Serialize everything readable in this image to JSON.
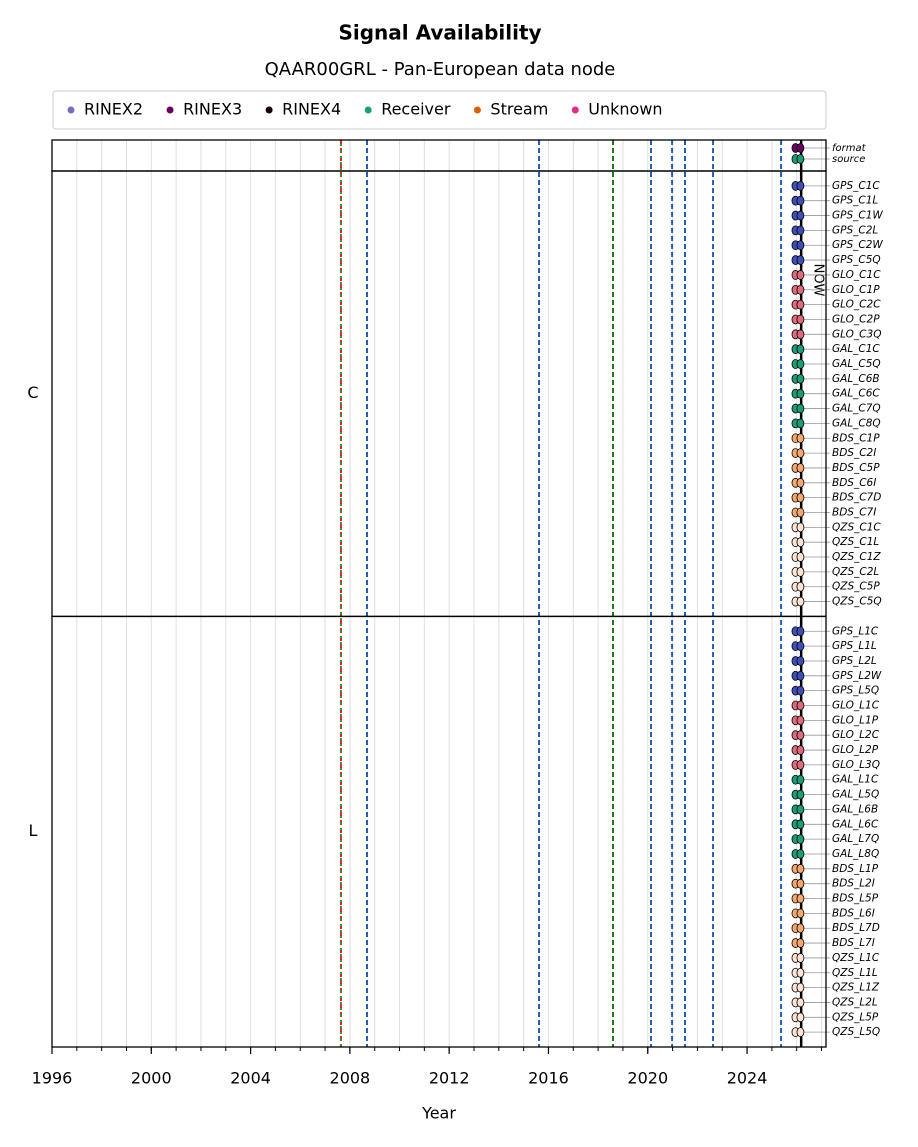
{
  "chart_data": {
    "type": "availability",
    "title": "Signal Availability",
    "subtitle": "QAAR00GRL - Pan-European data node",
    "x_label": "Year",
    "xlim": [
      1996,
      2027.18
    ],
    "xticks": [
      1996,
      2000,
      2004,
      2008,
      2012,
      2016,
      2020,
      2024
    ],
    "grid": true,
    "legend": [
      {
        "name": "RINEX2",
        "color": "#7570b3"
      },
      {
        "name": "RINEX3",
        "color": "#6a0060"
      },
      {
        "name": "RINEX4",
        "color": "#1a0010"
      },
      {
        "name": "Receiver",
        "color": "#1b9e77"
      },
      {
        "name": "Stream",
        "color": "#d95f02"
      },
      {
        "name": "Unknown",
        "color": "#e7298a"
      }
    ],
    "now": 2026.18,
    "now_label": "NOW",
    "events": [
      {
        "x": 2007.64,
        "color": "#d62728"
      },
      {
        "x": 2007.64,
        "color": "#2ca02c"
      },
      {
        "x": 2008.69,
        "color": "#1f5fbf"
      },
      {
        "x": 2015.62,
        "color": "#1f5fbf"
      },
      {
        "x": 2018.6,
        "color": "#1a7a1a"
      },
      {
        "x": 2020.13,
        "color": "#1f5fbf"
      },
      {
        "x": 2020.98,
        "color": "#1f5fbf"
      },
      {
        "x": 2021.5,
        "color": "#1f5fbf"
      },
      {
        "x": 2022.63,
        "color": "#1f5fbf"
      },
      {
        "x": 2025.37,
        "color": "#1f5fbf"
      }
    ],
    "meta_rows": [
      {
        "name": "format",
        "color": "#6a0060",
        "x": [
          2025.95,
          2026.15
        ]
      },
      {
        "name": "source",
        "color": "#1b9e77",
        "x": [
          2025.95,
          2026.15
        ]
      }
    ],
    "groups": [
      {
        "name": "C",
        "rows": [
          {
            "name": "GPS_C1C",
            "color": "#3f4fb8",
            "x": [
              2025.95,
              2026.15
            ]
          },
          {
            "name": "GPS_C1L",
            "color": "#3f4fb8",
            "x": [
              2025.95,
              2026.15
            ]
          },
          {
            "name": "GPS_C1W",
            "color": "#3f4fb8",
            "x": [
              2025.95,
              2026.15
            ]
          },
          {
            "name": "GPS_C2L",
            "color": "#3f4fb8",
            "x": [
              2025.95,
              2026.15
            ]
          },
          {
            "name": "GPS_C2W",
            "color": "#3f4fb8",
            "x": [
              2025.95,
              2026.15
            ]
          },
          {
            "name": "GPS_C5Q",
            "color": "#3f4fb8",
            "x": [
              2025.95,
              2026.15
            ]
          },
          {
            "name": "GLO_C1C",
            "color": "#e06a78",
            "x": [
              2025.95,
              2026.15
            ]
          },
          {
            "name": "GLO_C1P",
            "color": "#e06a78",
            "x": [
              2025.95,
              2026.15
            ]
          },
          {
            "name": "GLO_C2C",
            "color": "#e06a78",
            "x": [
              2025.95,
              2026.15
            ]
          },
          {
            "name": "GLO_C2P",
            "color": "#e06a78",
            "x": [
              2025.95,
              2026.15
            ]
          },
          {
            "name": "GLO_C3Q",
            "color": "#e06a78",
            "x": [
              2025.95,
              2026.15
            ]
          },
          {
            "name": "GAL_C1C",
            "color": "#1b9e77",
            "x": [
              2025.95,
              2026.15
            ]
          },
          {
            "name": "GAL_C5Q",
            "color": "#1b9e77",
            "x": [
              2025.95,
              2026.15
            ]
          },
          {
            "name": "GAL_C6B",
            "color": "#1b9e77",
            "x": [
              2025.95,
              2026.15
            ]
          },
          {
            "name": "GAL_C6C",
            "color": "#1b9e77",
            "x": [
              2025.95,
              2026.15
            ]
          },
          {
            "name": "GAL_C7Q",
            "color": "#1b9e77",
            "x": [
              2025.95,
              2026.15
            ]
          },
          {
            "name": "GAL_C8Q",
            "color": "#1b9e77",
            "x": [
              2025.95,
              2026.15
            ]
          },
          {
            "name": "BDS_C1P",
            "color": "#f4a870",
            "x": [
              2025.95,
              2026.15
            ]
          },
          {
            "name": "BDS_C2I",
            "color": "#f4a870",
            "x": [
              2025.95,
              2026.15
            ]
          },
          {
            "name": "BDS_C5P",
            "color": "#f4a870",
            "x": [
              2025.95,
              2026.15
            ]
          },
          {
            "name": "BDS_C6I",
            "color": "#f4a870",
            "x": [
              2025.95,
              2026.15
            ]
          },
          {
            "name": "BDS_C7D",
            "color": "#f4a870",
            "x": [
              2025.95,
              2026.15
            ]
          },
          {
            "name": "BDS_C7I",
            "color": "#f4a870",
            "x": [
              2025.95,
              2026.15
            ]
          },
          {
            "name": "QZS_C1C",
            "color": "#fde4d2",
            "x": [
              2025.95,
              2026.15
            ]
          },
          {
            "name": "QZS_C1L",
            "color": "#fde4d2",
            "x": [
              2025.95,
              2026.15
            ]
          },
          {
            "name": "QZS_C1Z",
            "color": "#fde4d2",
            "x": [
              2025.95,
              2026.15
            ]
          },
          {
            "name": "QZS_C2L",
            "color": "#fde4d2",
            "x": [
              2025.95,
              2026.15
            ]
          },
          {
            "name": "QZS_C5P",
            "color": "#fde4d2",
            "x": [
              2025.95,
              2026.15
            ]
          },
          {
            "name": "QZS_C5Q",
            "color": "#fde4d2",
            "x": [
              2025.95,
              2026.15
            ]
          }
        ]
      },
      {
        "name": "L",
        "rows": [
          {
            "name": "GPS_L1C",
            "color": "#3f4fb8",
            "x": [
              2025.95,
              2026.15
            ]
          },
          {
            "name": "GPS_L1L",
            "color": "#3f4fb8",
            "x": [
              2025.95,
              2026.15
            ]
          },
          {
            "name": "GPS_L2L",
            "color": "#3f4fb8",
            "x": [
              2025.95,
              2026.15
            ]
          },
          {
            "name": "GPS_L2W",
            "color": "#3f4fb8",
            "x": [
              2025.95,
              2026.15
            ]
          },
          {
            "name": "GPS_L5Q",
            "color": "#3f4fb8",
            "x": [
              2025.95,
              2026.15
            ]
          },
          {
            "name": "GLO_L1C",
            "color": "#e06a78",
            "x": [
              2025.95,
              2026.15
            ]
          },
          {
            "name": "GLO_L1P",
            "color": "#e06a78",
            "x": [
              2025.95,
              2026.15
            ]
          },
          {
            "name": "GLO_L2C",
            "color": "#e06a78",
            "x": [
              2025.95,
              2026.15
            ]
          },
          {
            "name": "GLO_L2P",
            "color": "#e06a78",
            "x": [
              2025.95,
              2026.15
            ]
          },
          {
            "name": "GLO_L3Q",
            "color": "#e06a78",
            "x": [
              2025.95,
              2026.15
            ]
          },
          {
            "name": "GAL_L1C",
            "color": "#1b9e77",
            "x": [
              2025.95,
              2026.15
            ]
          },
          {
            "name": "GAL_L5Q",
            "color": "#1b9e77",
            "x": [
              2025.95,
              2026.15
            ]
          },
          {
            "name": "GAL_L6B",
            "color": "#1b9e77",
            "x": [
              2025.95,
              2026.15
            ]
          },
          {
            "name": "GAL_L6C",
            "color": "#1b9e77",
            "x": [
              2025.95,
              2026.15
            ]
          },
          {
            "name": "GAL_L7Q",
            "color": "#1b9e77",
            "x": [
              2025.95,
              2026.15
            ]
          },
          {
            "name": "GAL_L8Q",
            "color": "#1b9e77",
            "x": [
              2025.95,
              2026.15
            ]
          },
          {
            "name": "BDS_L1P",
            "color": "#f4a870",
            "x": [
              2025.95,
              2026.15
            ]
          },
          {
            "name": "BDS_L2I",
            "color": "#f4a870",
            "x": [
              2025.95,
              2026.15
            ]
          },
          {
            "name": "BDS_L5P",
            "color": "#f4a870",
            "x": [
              2025.95,
              2026.15
            ]
          },
          {
            "name": "BDS_L6I",
            "color": "#f4a870",
            "x": [
              2025.95,
              2026.15
            ]
          },
          {
            "name": "BDS_L7D",
            "color": "#f4a870",
            "x": [
              2025.95,
              2026.15
            ]
          },
          {
            "name": "BDS_L7I",
            "color": "#f4a870",
            "x": [
              2025.95,
              2026.15
            ]
          },
          {
            "name": "QZS_L1C",
            "color": "#fde4d2",
            "x": [
              2025.95,
              2026.15
            ]
          },
          {
            "name": "QZS_L1L",
            "color": "#fde4d2",
            "x": [
              2025.95,
              2026.15
            ]
          },
          {
            "name": "QZS_L1Z",
            "color": "#fde4d2",
            "x": [
              2025.95,
              2026.15
            ]
          },
          {
            "name": "QZS_L2L",
            "color": "#fde4d2",
            "x": [
              2025.95,
              2026.15
            ]
          },
          {
            "name": "QZS_L5P",
            "color": "#fde4d2",
            "x": [
              2025.95,
              2026.15
            ]
          },
          {
            "name": "QZS_L5Q",
            "color": "#fde4d2",
            "x": [
              2025.95,
              2026.15
            ]
          }
        ]
      }
    ]
  }
}
